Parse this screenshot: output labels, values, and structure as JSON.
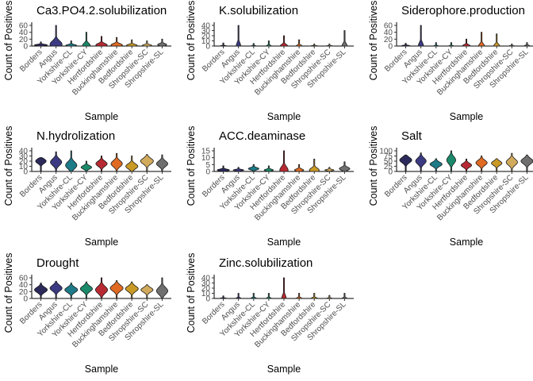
{
  "chart_data": [
    {
      "type": "violin",
      "title": "Ca3.PO4.2.solubilization",
      "xlabel": "Sample",
      "ylabel": "Count of Positives",
      "categories": [
        "Borders",
        "Angus",
        "Yorkshire-CL",
        "Yorkshire-CY",
        "Hertfordshire",
        "Buckinghamshire",
        "Bedfordshire",
        "Shropshire-SC",
        "Shropshire-SL"
      ],
      "yticks": [
        0,
        20,
        40,
        60
      ],
      "ylim": [
        0,
        60
      ],
      "max": [
        12,
        60,
        15,
        40,
        28,
        25,
        18,
        15,
        20
      ],
      "median": [
        3,
        5,
        2,
        2,
        3,
        3,
        2,
        2,
        4
      ],
      "width": [
        0.85,
        0.8,
        0.7,
        0.5,
        0.75,
        0.75,
        0.7,
        0.6,
        0.6
      ]
    },
    {
      "type": "violin",
      "title": "K.solubilization",
      "xlabel": "Sample",
      "ylabel": "Count of Positives",
      "categories": [
        "Borders",
        "Angus",
        "Yorkshire-CL",
        "Yorkshire-CY",
        "Hertfordshire",
        "Buckinghamshire",
        "Bedfordshire",
        "Shropshire-SC",
        "Shropshire-SL"
      ],
      "yticks": [
        0,
        10,
        20,
        30,
        40
      ],
      "ylim": [
        0,
        40
      ],
      "max": [
        6,
        40,
        5,
        10,
        20,
        12,
        4,
        4,
        30
      ],
      "median": [
        0,
        0,
        0,
        0,
        0,
        0,
        0,
        0,
        0
      ],
      "width": [
        0.45,
        0.3,
        0.4,
        0.35,
        0.5,
        0.4,
        0.55,
        0.5,
        0.35
      ]
    },
    {
      "type": "violin",
      "title": "Siderophore.production",
      "xlabel": "Sample",
      "ylabel": "Count of Positives",
      "categories": [
        "Borders",
        "Angus",
        "Yorkshire-CL",
        "Yorkshire-CY",
        "Hertfordshire",
        "Buckinghamshire",
        "Bedfordshire",
        "Shropshire-SC",
        "Shropshire-SL"
      ],
      "yticks": [
        0,
        20,
        40,
        60
      ],
      "ylim": [
        0,
        60
      ],
      "max": [
        8,
        60,
        10,
        10,
        20,
        40,
        35,
        6,
        10
      ],
      "median": [
        1,
        0,
        0,
        0,
        1,
        0,
        0,
        0,
        1
      ],
      "width": [
        0.55,
        0.35,
        0.35,
        0.35,
        0.5,
        0.4,
        0.4,
        0.45,
        0.35
      ]
    },
    {
      "type": "violin",
      "title": "N.hydrolization",
      "xlabel": "Sample",
      "ylabel": "Count of Positives",
      "categories": [
        "Borders",
        "Angus",
        "Yorkshire-CL",
        "Yorkshire-CY",
        "Hertfordshire",
        "Buckinghamshire",
        "Bedfordshire",
        "Shropshire-SC",
        "Shropshire-SL"
      ],
      "yticks": [
        0,
        10,
        20,
        30,
        40
      ],
      "ylim": [
        0,
        40
      ],
      "max": [
        27,
        38,
        40,
        20,
        30,
        35,
        30,
        33,
        32
      ],
      "median": [
        20,
        18,
        12,
        8,
        15,
        15,
        10,
        20,
        15
      ],
      "width": [
        0.7,
        0.75,
        0.75,
        0.7,
        0.75,
        0.75,
        0.8,
        0.85,
        0.75
      ]
    },
    {
      "type": "violin",
      "title": "ACC.deaminase",
      "xlabel": "Sample",
      "ylabel": "Count of Positives",
      "categories": [
        "Borders",
        "Angus",
        "Yorkshire-CL",
        "Yorkshire-CY",
        "Hertfordshire",
        "Buckinghamshire",
        "Bedfordshire",
        "Shropshire-SC",
        "Shropshire-SL"
      ],
      "yticks": [
        0,
        5,
        10,
        15
      ],
      "ylim": [
        0,
        15
      ],
      "max": [
        4,
        3,
        5,
        4,
        15,
        5,
        9,
        3,
        7
      ],
      "median": [
        1,
        1,
        2,
        1,
        1,
        1,
        1,
        1,
        2
      ],
      "width": [
        0.8,
        0.7,
        0.7,
        0.6,
        0.55,
        0.6,
        0.65,
        0.6,
        0.7
      ]
    },
    {
      "type": "violin",
      "title": "Salt",
      "xlabel": "Sample",
      "ylabel": "Count of Positives",
      "categories": [
        "Borders",
        "Angus",
        "Yorkshire-CL",
        "Yorkshire-CY",
        "Hertfordshire",
        "Buckinghamshire",
        "Bedfordshire",
        "Shropshire-SC",
        "Shropshire-SL"
      ],
      "yticks": [
        0,
        25,
        50,
        75,
        100
      ],
      "ylim": [
        0,
        100
      ],
      "max": [
        80,
        90,
        62,
        100,
        60,
        75,
        62,
        88,
        80
      ],
      "median": [
        55,
        50,
        35,
        55,
        30,
        42,
        40,
        45,
        50
      ],
      "width": [
        0.8,
        0.7,
        0.8,
        0.6,
        0.7,
        0.75,
        0.7,
        0.75,
        0.8
      ]
    },
    {
      "type": "violin",
      "title": "Drought",
      "xlabel": "Sample",
      "ylabel": "Count of Positives",
      "categories": [
        "Borders",
        "Angus",
        "Yorkshire-CL",
        "Yorkshire-CY",
        "Hertfordshire",
        "Buckinghamshire",
        "Bedfordshire",
        "Shropshire-SC",
        "Shropshire-SL"
      ],
      "yticks": [
        0,
        20,
        40,
        60
      ],
      "ylim": [
        0,
        60
      ],
      "max": [
        45,
        50,
        45,
        48,
        60,
        52,
        48,
        40,
        60
      ],
      "median": [
        25,
        30,
        25,
        28,
        25,
        30,
        28,
        25,
        22
      ],
      "width": [
        0.85,
        0.8,
        0.85,
        0.8,
        0.8,
        0.85,
        0.85,
        0.8,
        0.75
      ]
    },
    {
      "type": "violin",
      "title": "Zinc.solubilization",
      "xlabel": "Sample",
      "ylabel": "Count of Positives",
      "categories": [
        "Borders",
        "Angus",
        "Yorkshire-CL",
        "Yorkshire-CY",
        "Hertfordshire",
        "Buckinghamshire",
        "Bedfordshire",
        "Shropshire-SC",
        "Shropshire-SL"
      ],
      "yticks": [
        0,
        10,
        20,
        30,
        40
      ],
      "ylim": [
        0,
        40
      ],
      "max": [
        5,
        10,
        10,
        10,
        40,
        10,
        10,
        6,
        10
      ],
      "median": [
        0,
        0,
        0,
        0,
        0,
        0,
        0,
        0,
        0
      ],
      "width": [
        0.55,
        0.35,
        0.4,
        0.35,
        0.3,
        0.4,
        0.45,
        0.4,
        0.35
      ]
    }
  ],
  "colors": [
    "#2b2a5a",
    "#3b3a82",
    "#1d7a88",
    "#1b8a6a",
    "#b82a33",
    "#e06a22",
    "#c99a26",
    "#d1aa5c",
    "#6f6f6f"
  ]
}
